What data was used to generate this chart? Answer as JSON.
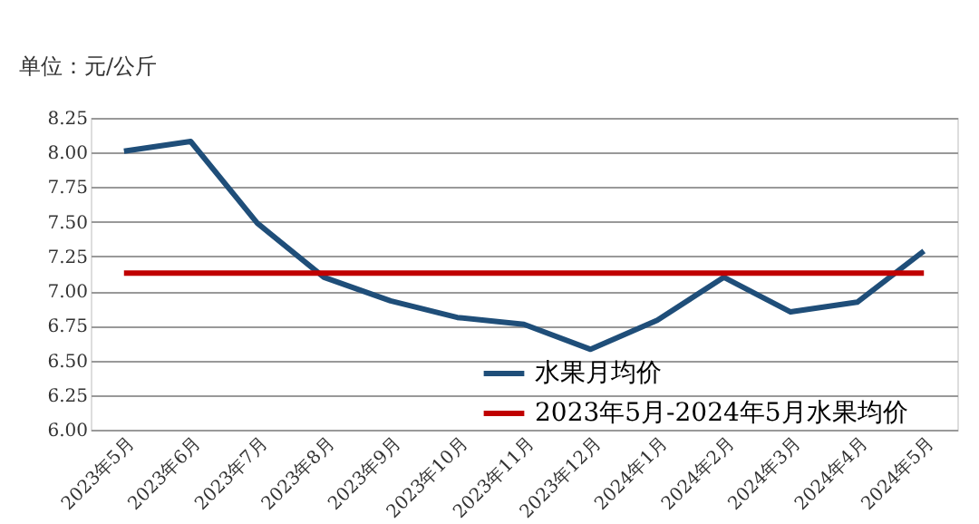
{
  "chart_data": {
    "type": "line",
    "ylabel": "单位：元/公斤",
    "categories": [
      "2023年5月",
      "2023年6月",
      "2023年7月",
      "2023年8月",
      "2023年9月",
      "2023年10月",
      "2023年11月",
      "2023年12月",
      "2024年1月",
      "2024年2月",
      "2024年3月",
      "2024年4月",
      "2024年5月"
    ],
    "series": [
      {
        "name": "水果月均价",
        "color": "#1f4e79",
        "values": [
          8.01,
          8.08,
          7.49,
          7.1,
          6.93,
          6.81,
          6.76,
          6.58,
          6.79,
          7.1,
          6.85,
          6.92,
          7.29
        ]
      },
      {
        "name": "2023年5月-2024年5月水果均价",
        "color": "#c00000",
        "values": [
          7.13,
          7.13,
          7.13,
          7.13,
          7.13,
          7.13,
          7.13,
          7.13,
          7.13,
          7.13,
          7.13,
          7.13,
          7.13
        ]
      }
    ],
    "ylim": [
      6.0,
      8.25
    ],
    "yticks": [
      {
        "value": 6.0,
        "label": "6.00"
      },
      {
        "value": 6.25,
        "label": "6.25"
      },
      {
        "value": 6.5,
        "label": "6.50"
      },
      {
        "value": 6.75,
        "label": "6.75"
      },
      {
        "value": 7.0,
        "label": "7.00"
      },
      {
        "value": 7.25,
        "label": "7.25"
      },
      {
        "value": 7.5,
        "label": "7.50"
      },
      {
        "value": 7.75,
        "label": "7.75"
      },
      {
        "value": 8.0,
        "label": "8.00"
      },
      {
        "value": 8.25,
        "label": "8.25"
      }
    ],
    "grid": "y",
    "legend": "bottom right",
    "marker": "none",
    "line_style": "solid"
  }
}
